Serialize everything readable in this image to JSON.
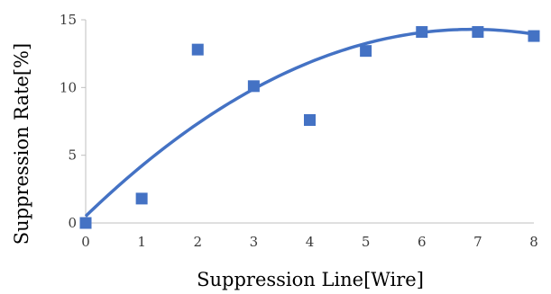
{
  "chart_data": {
    "type": "scatter",
    "xlabel": "Suppression Line[Wire]",
    "ylabel": "Suppression Rate[%]",
    "xlim": [
      0,
      8
    ],
    "ylim": [
      0,
      15
    ],
    "x_ticks": [
      "0",
      "1",
      "2",
      "3",
      "4",
      "5",
      "6",
      "7",
      "8"
    ],
    "y_ticks": [
      "0",
      "5",
      "10",
      "15"
    ],
    "grid": false,
    "legend": "none",
    "series": [
      {
        "x": [
          0,
          1,
          2,
          3,
          4,
          5,
          6,
          7,
          8
        ],
        "values": [
          0.0,
          1.8,
          12.8,
          10.1,
          7.6,
          12.7,
          14.1,
          14.1,
          13.8
        ],
        "marker": "square",
        "color": "#4472C4"
      }
    ],
    "trendline": {
      "type": "polynomial",
      "order": 2,
      "coefficients": [
        0.5,
        4.0,
        -0.29
      ],
      "color": "#4472C4"
    }
  }
}
